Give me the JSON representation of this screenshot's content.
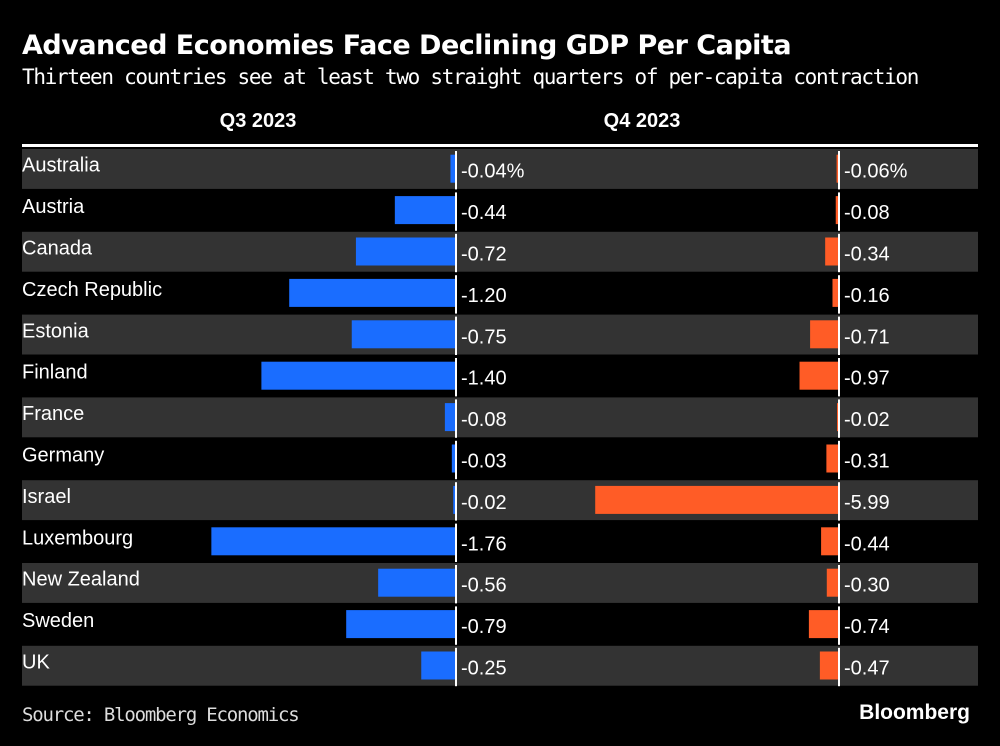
{
  "chart_data": {
    "type": "bar",
    "orientation": "horizontal",
    "title": "Advanced Economies Face Declining GDP Per Capita",
    "subtitle": "Thirteen countries see at least two straight quarters of per-capita contraction",
    "categories": [
      "Australia",
      "Austria",
      "Canada",
      "Czech Republic",
      "Estonia",
      "Finland",
      "France",
      "Germany",
      "Israel",
      "Luxembourg",
      "New Zealand",
      "Sweden",
      "UK"
    ],
    "series": [
      {
        "name": "Q3 2023",
        "color": "#1a6dff",
        "values": [
          -0.04,
          -0.44,
          -0.72,
          -1.2,
          -0.75,
          -1.4,
          -0.08,
          -0.03,
          -0.02,
          -1.76,
          -0.56,
          -0.79,
          -0.25
        ],
        "labels": [
          "-0.04%",
          "-0.44",
          "-0.72",
          "-1.20",
          "-0.75",
          "-1.40",
          "-0.08",
          "-0.03",
          "-0.02",
          "-1.76",
          "-0.56",
          "-0.79",
          "-0.25"
        ]
      },
      {
        "name": "Q4 2023",
        "color": "#ff5c26",
        "values": [
          -0.06,
          -0.08,
          -0.34,
          -0.16,
          -0.71,
          -0.97,
          -0.02,
          -0.31,
          -5.99,
          -0.44,
          -0.3,
          -0.74,
          -0.47
        ],
        "labels": [
          "-0.06%",
          "-0.08",
          "-0.34",
          "-0.16",
          "-0.71",
          "-0.97",
          "-0.02",
          "-0.31",
          "-5.99",
          "-0.44",
          "-0.30",
          "-0.74",
          "-0.47"
        ]
      }
    ],
    "unit": "%",
    "row_band_color": "#333333",
    "source": "Source: Bloomberg Economics",
    "brand": "Bloomberg"
  }
}
